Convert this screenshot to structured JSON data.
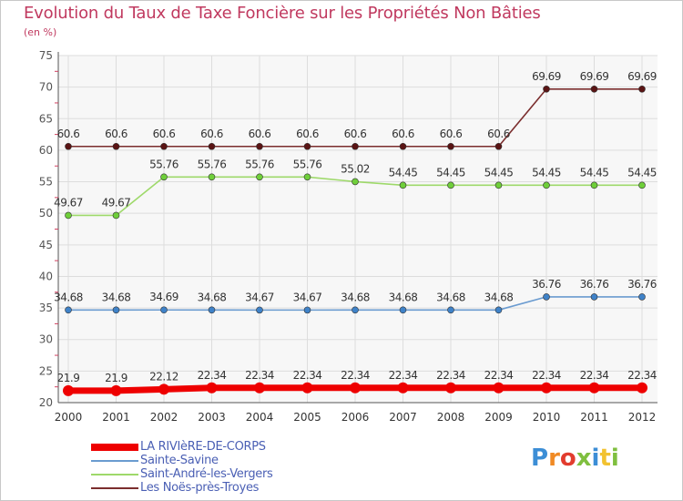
{
  "title": "Evolution du Taux de Taxe Foncière sur les Propriétés Non Bâties",
  "unit": "(en %)",
  "logo": {
    "text": "Proxiti",
    "colors": [
      "#3c8ed6",
      "#f08a24",
      "#e23c2e",
      "#7fbf3f",
      "#3c8ed6",
      "#f2c230",
      "#7fbf3f"
    ]
  },
  "chart_data": {
    "type": "line",
    "title": "Evolution du Taux de Taxe Foncière sur les Propriétés Non Bâties",
    "ylabel": "(en %)",
    "ylim": [
      20,
      75
    ],
    "yticks": [
      20,
      25,
      30,
      35,
      40,
      45,
      50,
      55,
      60,
      65,
      70,
      75
    ],
    "x": [
      "2000",
      "2001",
      "2002",
      "2003",
      "2004",
      "2005",
      "2006",
      "2007",
      "2008",
      "2009",
      "2010",
      "2011",
      "2012"
    ],
    "grid": true,
    "series": [
      {
        "name": "Les Noës-près-Troyes",
        "color": "#7b2e2e",
        "fill": "#5a1414",
        "values": [
          60.6,
          60.6,
          60.6,
          60.6,
          60.6,
          60.6,
          60.6,
          60.6,
          60.6,
          60.6,
          69.69,
          69.69,
          69.69
        ],
        "labels": [
          "60.6",
          "60.6",
          "60.6",
          "60.6",
          "60.6",
          "60.6",
          "60.6",
          "60.6",
          "60.6",
          "60.6",
          "69.69",
          "69.69",
          "69.69"
        ]
      },
      {
        "name": "Saint-André-les-Vergers",
        "color": "#9ed96a",
        "fill": "#6fcf3a",
        "values": [
          49.67,
          49.67,
          55.76,
          55.76,
          55.76,
          55.76,
          55.02,
          54.45,
          54.45,
          54.45,
          54.45,
          54.45,
          54.45
        ],
        "labels": [
          "49.67",
          "49.67",
          "55.76",
          "55.76",
          "55.76",
          "55.76",
          "55.02",
          "54.45",
          "54.45",
          "54.45",
          "54.45",
          "54.45",
          "54.45"
        ]
      },
      {
        "name": "Sainte-Savine",
        "color": "#6a9bd0",
        "fill": "#3f82c8",
        "values": [
          34.68,
          34.68,
          34.69,
          34.68,
          34.67,
          34.67,
          34.68,
          34.68,
          34.68,
          34.68,
          36.76,
          36.76,
          36.76
        ],
        "labels": [
          "34.68",
          "34.68",
          "34.69",
          "34.68",
          "34.67",
          "34.67",
          "34.68",
          "34.68",
          "34.68",
          "34.68",
          "36.76",
          "36.76",
          "36.76"
        ]
      },
      {
        "name": "LA RIVIèRE-DE-CORPS",
        "color": "#ee0000",
        "fill": "#ee0000",
        "values": [
          21.9,
          21.9,
          22.12,
          22.34,
          22.34,
          22.34,
          22.34,
          22.34,
          22.34,
          22.34,
          22.34,
          22.34,
          22.34
        ],
        "labels": [
          "21.9",
          "21.9",
          "22.12",
          "22.34",
          "22.34",
          "22.34",
          "22.34",
          "22.34",
          "22.34",
          "22.34",
          "22.34",
          "22.34",
          "22.34"
        ]
      }
    ],
    "legend": [
      {
        "name": "LA RIVIèRE-DE-CORPS",
        "color": "#ee0000",
        "thick": true
      },
      {
        "name": "Sainte-Savine",
        "color": "#6a9bd0",
        "thick": false
      },
      {
        "name": "Saint-André-les-Vergers",
        "color": "#9ed96a",
        "thick": false
      },
      {
        "name": "Les Noës-près-Troyes",
        "color": "#7b2e2e",
        "thick": false
      }
    ],
    "legend_position": "bottom-left"
  }
}
